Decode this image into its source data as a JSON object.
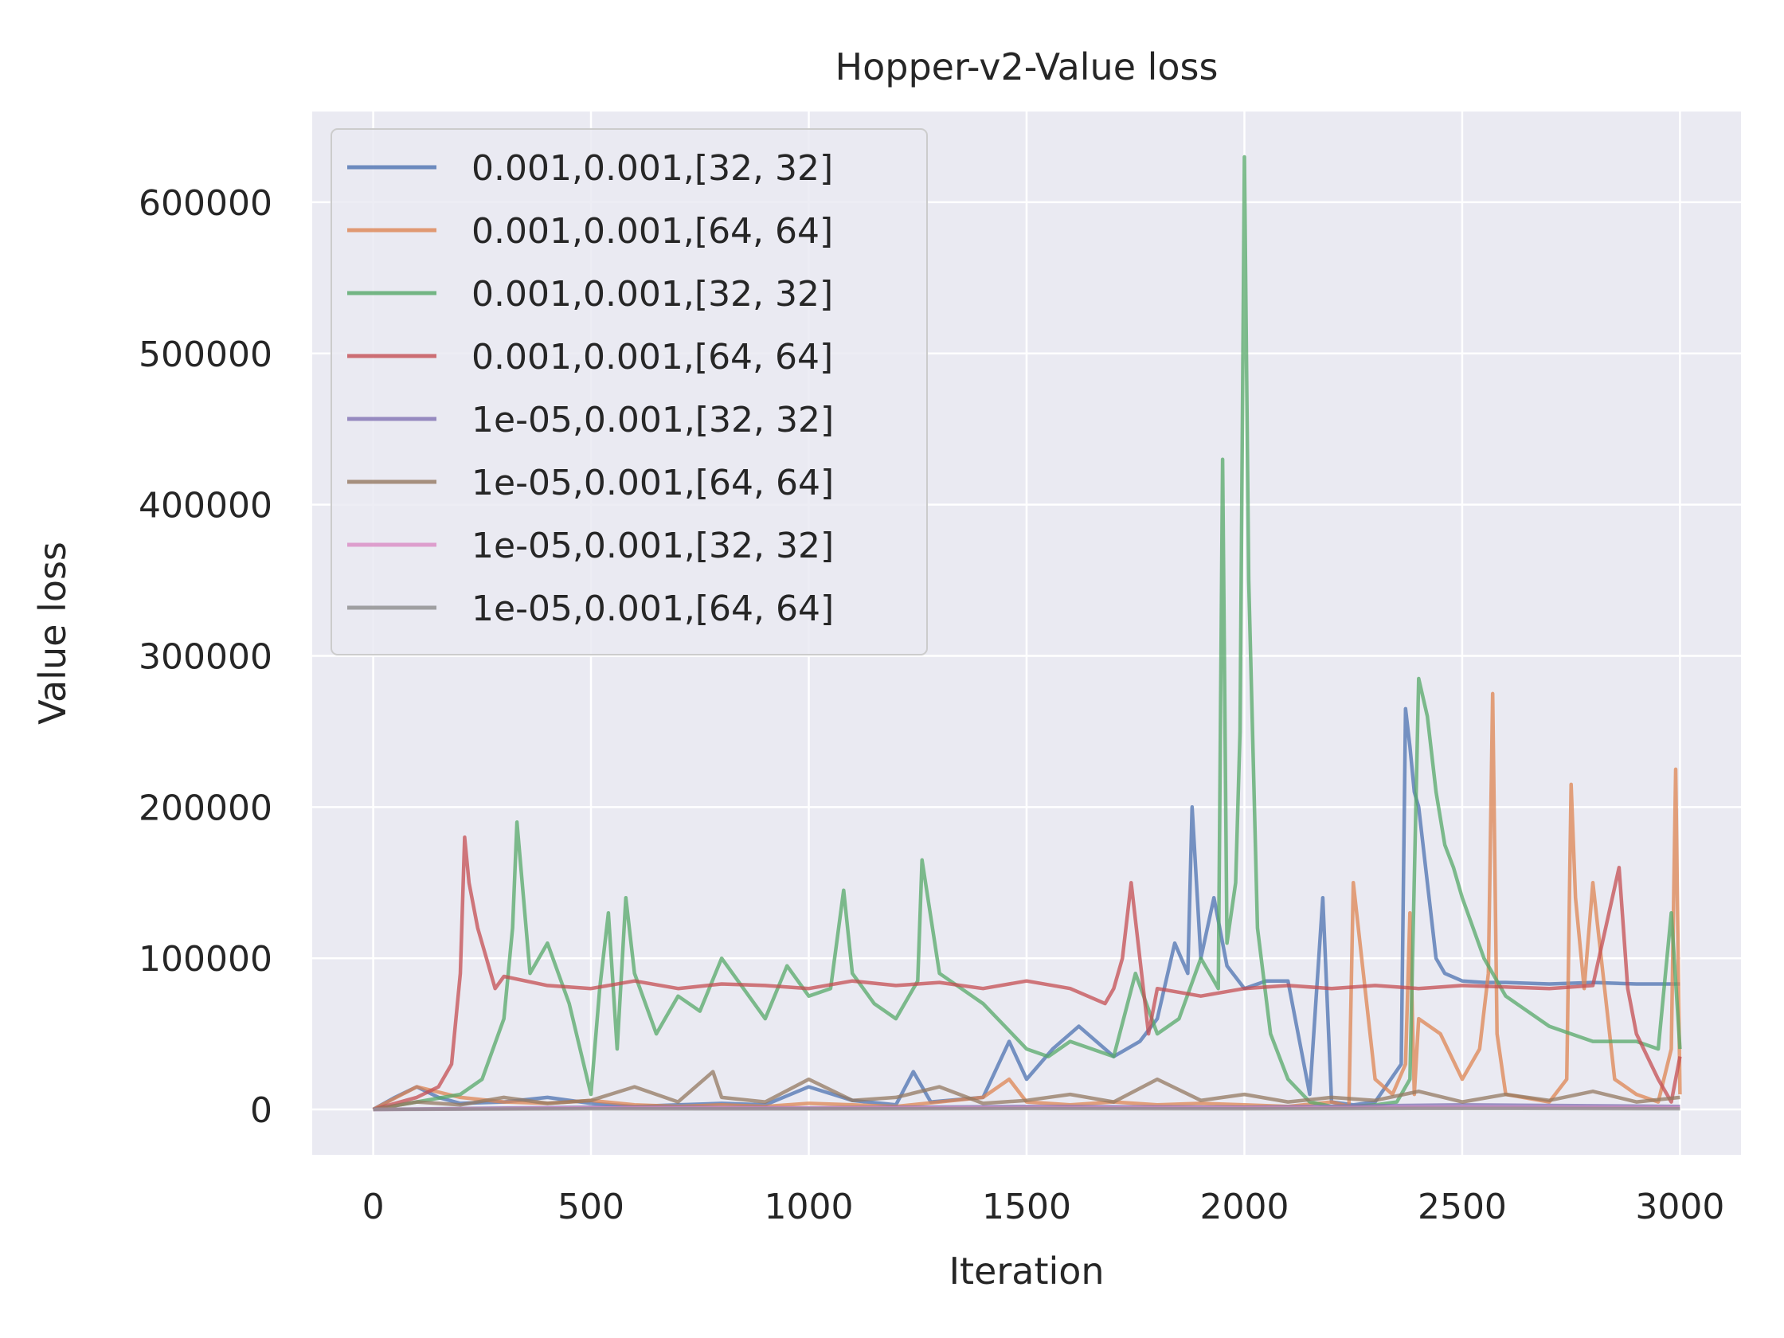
{
  "colors": {
    "background": "#ffffff",
    "plot_background": "#eaeaf2",
    "grid": "#ffffff",
    "text": "#262626",
    "legend_background": "#eaeaf2",
    "legend_border": "#cccccc"
  },
  "chart_data": {
    "type": "line",
    "title": "Hopper-v2-Value loss",
    "xlabel": "Iteration",
    "ylabel": "Value loss",
    "xlim": [
      -140,
      3140
    ],
    "ylim": [
      -30000,
      660000
    ],
    "xticks": [
      0,
      500,
      1000,
      1500,
      2000,
      2500,
      3000
    ],
    "xtick_labels": [
      "0",
      "500",
      "1000",
      "1500",
      "2000",
      "2500",
      "3000"
    ],
    "yticks": [
      0,
      100000,
      200000,
      300000,
      400000,
      500000,
      600000
    ],
    "ytick_labels": [
      "0",
      "100000",
      "200000",
      "300000",
      "400000",
      "500000",
      "600000"
    ],
    "grid": true,
    "legend_position": "upper left",
    "series": [
      {
        "name": "0.001,0.001,[32, 32]",
        "color": "#4c72b0",
        "x": [
          0,
          50,
          100,
          150,
          200,
          300,
          400,
          500,
          600,
          700,
          800,
          900,
          1000,
          1100,
          1200,
          1240,
          1280,
          1400,
          1460,
          1500,
          1560,
          1620,
          1700,
          1760,
          1800,
          1840,
          1870,
          1880,
          1900,
          1930,
          1960,
          2000,
          2050,
          2100,
          2150,
          2180,
          2200,
          2250,
          2300,
          2360,
          2370,
          2380,
          2390,
          2400,
          2420,
          2440,
          2460,
          2500,
          2550,
          2600,
          2700,
          2800,
          2900,
          3000
        ],
        "y": [
          0,
          8000,
          15000,
          8000,
          4000,
          5000,
          8000,
          4000,
          2000,
          3000,
          4000,
          3000,
          15000,
          6000,
          3000,
          25000,
          5000,
          8000,
          45000,
          20000,
          40000,
          55000,
          35000,
          45000,
          60000,
          110000,
          90000,
          200000,
          100000,
          140000,
          95000,
          80000,
          85000,
          85000,
          10000,
          140000,
          5000,
          3000,
          5000,
          30000,
          265000,
          240000,
          210000,
          200000,
          150000,
          100000,
          90000,
          85000,
          84000,
          84000,
          83000,
          84000,
          83000,
          83000
        ]
      },
      {
        "name": "0.001,0.001,[64, 64]",
        "color": "#dd8452",
        "x": [
          0,
          100,
          200,
          300,
          400,
          500,
          600,
          700,
          800,
          900,
          1000,
          1100,
          1200,
          1300,
          1400,
          1460,
          1500,
          1600,
          1700,
          1800,
          1900,
          2000,
          2100,
          2200,
          2240,
          2250,
          2300,
          2340,
          2370,
          2380,
          2390,
          2400,
          2450,
          2500,
          2540,
          2560,
          2570,
          2580,
          2600,
          2700,
          2740,
          2750,
          2760,
          2780,
          2800,
          2850,
          2900,
          2950,
          2980,
          2990,
          3000
        ],
        "y": [
          0,
          15000,
          8000,
          5000,
          4000,
          6000,
          3000,
          2000,
          3000,
          2000,
          4000,
          3000,
          2000,
          5000,
          8000,
          20000,
          5000,
          3000,
          5000,
          3000,
          4000,
          3000,
          2000,
          5000,
          2000,
          150000,
          20000,
          10000,
          30000,
          130000,
          10000,
          60000,
          50000,
          20000,
          40000,
          90000,
          275000,
          50000,
          10000,
          5000,
          20000,
          215000,
          140000,
          80000,
          150000,
          20000,
          10000,
          5000,
          40000,
          225000,
          10000
        ]
      },
      {
        "name": "0.001,0.001,[32, 32]",
        "color": "#55a868",
        "x": [
          0,
          100,
          200,
          250,
          300,
          320,
          330,
          360,
          400,
          450,
          500,
          520,
          540,
          560,
          580,
          600,
          650,
          700,
          750,
          800,
          850,
          900,
          950,
          1000,
          1050,
          1080,
          1100,
          1150,
          1200,
          1250,
          1260,
          1300,
          1350,
          1400,
          1450,
          1500,
          1550,
          1600,
          1650,
          1700,
          1750,
          1800,
          1850,
          1900,
          1940,
          1950,
          1960,
          1980,
          1990,
          2000,
          2010,
          2030,
          2060,
          2100,
          2150,
          2200,
          2250,
          2300,
          2350,
          2380,
          2400,
          2420,
          2440,
          2460,
          2480,
          2500,
          2550,
          2600,
          2700,
          2800,
          2900,
          2950,
          2980,
          3000
        ],
        "y": [
          0,
          5000,
          10000,
          20000,
          60000,
          120000,
          190000,
          90000,
          110000,
          70000,
          10000,
          80000,
          130000,
          40000,
          140000,
          90000,
          50000,
          75000,
          65000,
          100000,
          80000,
          60000,
          95000,
          75000,
          80000,
          145000,
          90000,
          70000,
          60000,
          85000,
          165000,
          90000,
          80000,
          70000,
          55000,
          40000,
          35000,
          45000,
          40000,
          35000,
          90000,
          50000,
          60000,
          100000,
          80000,
          430000,
          110000,
          150000,
          250000,
          630000,
          350000,
          120000,
          50000,
          20000,
          5000,
          2000,
          2000,
          3000,
          5000,
          20000,
          285000,
          260000,
          210000,
          175000,
          160000,
          140000,
          100000,
          75000,
          55000,
          45000,
          45000,
          40000,
          130000,
          40000
        ]
      },
      {
        "name": "0.001,0.001,[64, 64]",
        "color": "#c44e52",
        "x": [
          0,
          100,
          150,
          180,
          200,
          210,
          220,
          240,
          260,
          280,
          300,
          400,
          500,
          600,
          700,
          800,
          900,
          1000,
          1100,
          1200,
          1300,
          1400,
          1500,
          1600,
          1680,
          1700,
          1720,
          1740,
          1760,
          1780,
          1800,
          1900,
          2000,
          2100,
          2200,
          2300,
          2400,
          2500,
          2600,
          2700,
          2800,
          2860,
          2880,
          2900,
          2950,
          2980,
          3000
        ],
        "y": [
          0,
          8000,
          15000,
          30000,
          90000,
          180000,
          150000,
          120000,
          100000,
          80000,
          88000,
          82000,
          80000,
          85000,
          80000,
          83000,
          82000,
          80000,
          85000,
          82000,
          84000,
          80000,
          85000,
          80000,
          70000,
          80000,
          100000,
          150000,
          100000,
          50000,
          80000,
          75000,
          80000,
          82000,
          80000,
          82000,
          80000,
          82000,
          81000,
          80000,
          82000,
          160000,
          80000,
          50000,
          20000,
          5000,
          35000
        ]
      },
      {
        "name": "1e-05,0.001,[32, 32]",
        "color": "#8172b3",
        "x": [
          0,
          500,
          1000,
          1500,
          2000,
          2500,
          3000
        ],
        "y": [
          0,
          1500,
          1000,
          2000,
          1500,
          3000,
          2000
        ]
      },
      {
        "name": "1e-05,0.001,[64, 64]",
        "color": "#937860",
        "x": [
          0,
          100,
          200,
          300,
          400,
          500,
          600,
          700,
          780,
          800,
          900,
          1000,
          1100,
          1200,
          1300,
          1400,
          1500,
          1600,
          1700,
          1800,
          1900,
          2000,
          2100,
          2200,
          2300,
          2400,
          2500,
          2600,
          2700,
          2800,
          2900,
          3000
        ],
        "y": [
          0,
          5000,
          3000,
          8000,
          4000,
          6000,
          15000,
          5000,
          25000,
          8000,
          5000,
          20000,
          6000,
          8000,
          15000,
          4000,
          6000,
          10000,
          5000,
          20000,
          6000,
          10000,
          5000,
          8000,
          6000,
          12000,
          5000,
          10000,
          6000,
          12000,
          5000,
          8000
        ]
      },
      {
        "name": "1e-05,0.001,[32, 32]",
        "color": "#da8bc3",
        "x": [
          0,
          500,
          1000,
          1500,
          2000,
          2500,
          3000
        ],
        "y": [
          0,
          1000,
          800,
          1200,
          1000,
          1500,
          1200
        ]
      },
      {
        "name": "1e-05,0.001,[64, 64]",
        "color": "#8c8c8c",
        "x": [
          0,
          500,
          1000,
          1500,
          2000,
          2500,
          3000
        ],
        "y": [
          0,
          500,
          400,
          600,
          500,
          700,
          500
        ]
      }
    ]
  }
}
